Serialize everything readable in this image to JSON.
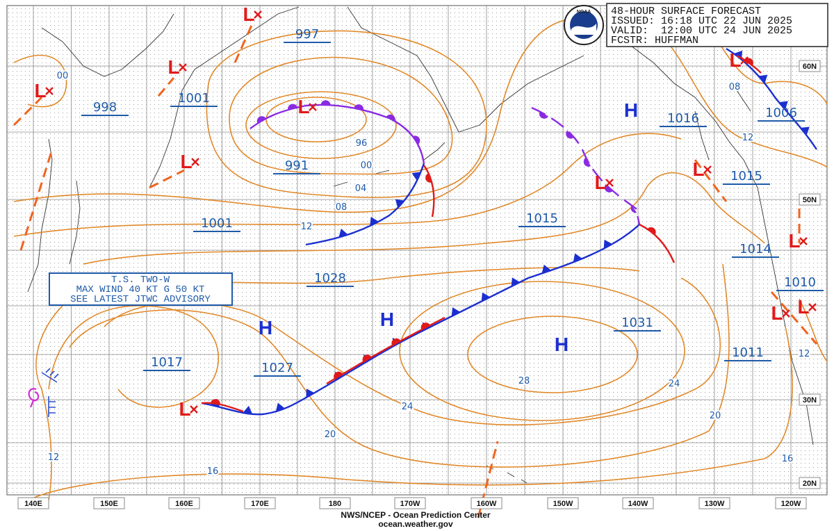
{
  "header": {
    "title": "48-HOUR SURFACE FORECAST",
    "issued": "ISSUED: 16:18 UTC 22 JUN 2025",
    "valid": "VALID:  12:00 UTC 24 JUN 2025",
    "forecaster": "FCSTR: HUFFMAN"
  },
  "logo": "NOAA",
  "longitudes": [
    "140E",
    "150E",
    "160E",
    "170E",
    "180",
    "170W",
    "160W",
    "150W",
    "140W",
    "130W",
    "120W"
  ],
  "latitudes": [
    "60N",
    "50N",
    "30N",
    "20N"
  ],
  "pressure_labels": [
    "997",
    "1001",
    "998",
    "991",
    "1016",
    "1006",
    "1015",
    "1015",
    "1001",
    "1014",
    "1010",
    "1028",
    "1031",
    "1027",
    "1017",
    "1011"
  ],
  "isobar_labels": [
    "00",
    "96",
    "00",
    "04",
    "08",
    "12",
    "08",
    "12",
    "24",
    "28",
    "24",
    "20",
    "20",
    "16",
    "16",
    "12",
    "12"
  ],
  "high_marker": "H",
  "low_marker": "L",
  "advisory": [
    "T.S. TWO-W",
    "MAX WIND 40 KT G 50 KT",
    "SEE LATEST JTWC ADVISORY"
  ],
  "footer": {
    "source": "NWS/NCEP - Ocean Prediction Center",
    "url": "ocean.weather.gov"
  }
}
